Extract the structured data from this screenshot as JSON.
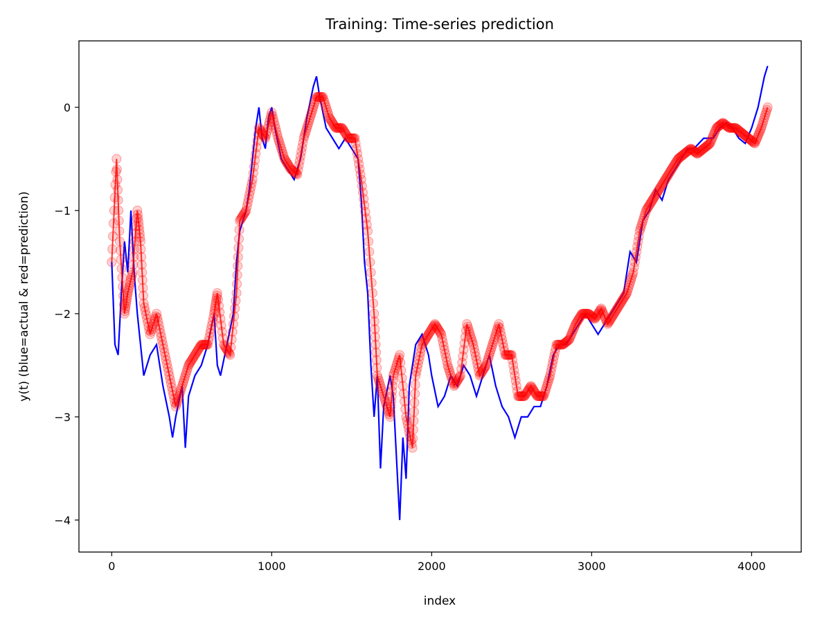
{
  "chart_data": {
    "type": "line",
    "title": "Training: Time-series prediction",
    "xlabel": "index",
    "ylabel": "y(t) (blue=actual & red=prediction)",
    "xlim": [
      -205,
      4310
    ],
    "ylim": [
      -4.31,
      0.644
    ],
    "xticks": [
      0,
      1000,
      2000,
      3000,
      4000
    ],
    "xtick_labels": [
      "0",
      "1000",
      "2000",
      "3000",
      "4000"
    ],
    "yticks": [
      0,
      -1,
      -2,
      -3,
      -4
    ],
    "ytick_labels": [
      "0",
      "−1",
      "−2",
      "−3",
      "−4"
    ],
    "grid": false,
    "series": [
      {
        "role": "actual",
        "color": "#0000ff",
        "style": "line",
        "x": [
          0,
          20,
          40,
          60,
          80,
          100,
          120,
          140,
          160,
          180,
          200,
          240,
          280,
          320,
          360,
          380,
          400,
          440,
          460,
          480,
          520,
          560,
          600,
          640,
          660,
          680,
          720,
          760,
          780,
          800,
          840,
          860,
          880,
          900,
          920,
          940,
          960,
          980,
          1000,
          1020,
          1060,
          1100,
          1140,
          1180,
          1220,
          1260,
          1280,
          1300,
          1340,
          1380,
          1420,
          1460,
          1500,
          1540,
          1560,
          1580,
          1600,
          1620,
          1640,
          1660,
          1680,
          1700,
          1740,
          1760,
          1780,
          1800,
          1820,
          1840,
          1860,
          1900,
          1940,
          1980,
          2000,
          2040,
          2080,
          2120,
          2160,
          2200,
          2240,
          2280,
          2320,
          2360,
          2400,
          2440,
          2480,
          2520,
          2560,
          2600,
          2640,
          2680,
          2720,
          2760,
          2800,
          2840,
          2880,
          2920,
          2960,
          3000,
          3040,
          3080,
          3120,
          3160,
          3200,
          3240,
          3280,
          3320,
          3360,
          3400,
          3440,
          3480,
          3520,
          3560,
          3600,
          3640,
          3700,
          3760,
          3800,
          3840,
          3880,
          3920,
          3960,
          4000,
          4040,
          4080,
          4100
        ],
        "y": [
          -1.5,
          -2.3,
          -2.4,
          -1.8,
          -1.3,
          -1.6,
          -1.0,
          -1.6,
          -2.0,
          -2.3,
          -2.6,
          -2.4,
          -2.3,
          -2.7,
          -3.0,
          -3.2,
          -3.0,
          -2.7,
          -3.3,
          -2.8,
          -2.6,
          -2.5,
          -2.3,
          -2.0,
          -2.5,
          -2.6,
          -2.3,
          -2.0,
          -1.5,
          -1.2,
          -1.0,
          -0.8,
          -0.5,
          -0.2,
          0.0,
          -0.3,
          -0.4,
          -0.1,
          0.0,
          -0.2,
          -0.5,
          -0.6,
          -0.7,
          -0.5,
          -0.1,
          0.2,
          0.3,
          0.1,
          -0.2,
          -0.3,
          -0.4,
          -0.3,
          -0.4,
          -0.5,
          -0.9,
          -1.5,
          -1.8,
          -2.5,
          -3.0,
          -2.6,
          -3.5,
          -2.9,
          -2.6,
          -2.8,
          -3.4,
          -4.0,
          -3.2,
          -3.6,
          -2.7,
          -2.3,
          -2.2,
          -2.4,
          -2.6,
          -2.9,
          -2.8,
          -2.6,
          -2.7,
          -2.5,
          -2.6,
          -2.8,
          -2.6,
          -2.4,
          -2.7,
          -2.9,
          -3.0,
          -3.2,
          -3.0,
          -3.0,
          -2.9,
          -2.9,
          -2.7,
          -2.4,
          -2.3,
          -2.3,
          -2.2,
          -2.1,
          -2.0,
          -2.1,
          -2.2,
          -2.1,
          -2.0,
          -1.9,
          -1.8,
          -1.4,
          -1.5,
          -1.1,
          -1.0,
          -0.8,
          -0.9,
          -0.7,
          -0.6,
          -0.5,
          -0.4,
          -0.4,
          -0.3,
          -0.3,
          -0.2,
          -0.15,
          -0.2,
          -0.3,
          -0.35,
          -0.2,
          0.0,
          0.3,
          0.4
        ]
      },
      {
        "role": "prediction",
        "color": "#ff0000",
        "style": "line+circle markers (semi-transparent)",
        "x": [
          0,
          30,
          50,
          80,
          100,
          130,
          160,
          180,
          200,
          240,
          280,
          320,
          360,
          400,
          440,
          480,
          520,
          560,
          600,
          640,
          660,
          700,
          740,
          780,
          800,
          840,
          880,
          920,
          960,
          1000,
          1040,
          1080,
          1120,
          1160,
          1200,
          1240,
          1280,
          1320,
          1360,
          1400,
          1440,
          1480,
          1520,
          1560,
          1600,
          1640,
          1660,
          1700,
          1740,
          1760,
          1800,
          1840,
          1880,
          1900,
          1940,
          1980,
          2020,
          2060,
          2100,
          2140,
          2180,
          2220,
          2260,
          2300,
          2340,
          2380,
          2420,
          2460,
          2500,
          2540,
          2580,
          2620,
          2660,
          2700,
          2740,
          2780,
          2820,
          2860,
          2900,
          2940,
          2980,
          3020,
          3060,
          3100,
          3140,
          3180,
          3220,
          3260,
          3300,
          3340,
          3380,
          3420,
          3460,
          3500,
          3540,
          3580,
          3620,
          3660,
          3700,
          3740,
          3780,
          3820,
          3860,
          3900,
          3940,
          3980,
          4020,
          4060,
          4100
        ],
        "y": [
          -1.5,
          -0.5,
          -1.3,
          -2.0,
          -1.8,
          -1.6,
          -1.0,
          -1.3,
          -1.9,
          -2.2,
          -2.0,
          -2.3,
          -2.6,
          -2.9,
          -2.7,
          -2.5,
          -2.4,
          -2.3,
          -2.3,
          -2.0,
          -1.8,
          -2.3,
          -2.4,
          -1.8,
          -1.1,
          -1.0,
          -0.7,
          -0.2,
          -0.3,
          -0.05,
          -0.3,
          -0.5,
          -0.6,
          -0.65,
          -0.3,
          -0.1,
          0.1,
          0.1,
          -0.1,
          -0.2,
          -0.2,
          -0.3,
          -0.3,
          -0.7,
          -1.2,
          -2.0,
          -2.6,
          -2.8,
          -3.0,
          -2.6,
          -2.4,
          -3.0,
          -3.3,
          -2.6,
          -2.3,
          -2.2,
          -2.1,
          -2.2,
          -2.5,
          -2.7,
          -2.6,
          -2.1,
          -2.3,
          -2.6,
          -2.5,
          -2.3,
          -2.1,
          -2.4,
          -2.4,
          -2.8,
          -2.8,
          -2.7,
          -2.8,
          -2.8,
          -2.6,
          -2.3,
          -2.3,
          -2.25,
          -2.1,
          -2.0,
          -2.0,
          -2.05,
          -1.95,
          -2.1,
          -2.0,
          -1.9,
          -1.8,
          -1.6,
          -1.2,
          -1.0,
          -0.9,
          -0.8,
          -0.7,
          -0.6,
          -0.5,
          -0.45,
          -0.4,
          -0.45,
          -0.4,
          -0.35,
          -0.2,
          -0.15,
          -0.2,
          -0.2,
          -0.25,
          -0.3,
          -0.35,
          -0.2,
          0.0
        ]
      }
    ]
  }
}
